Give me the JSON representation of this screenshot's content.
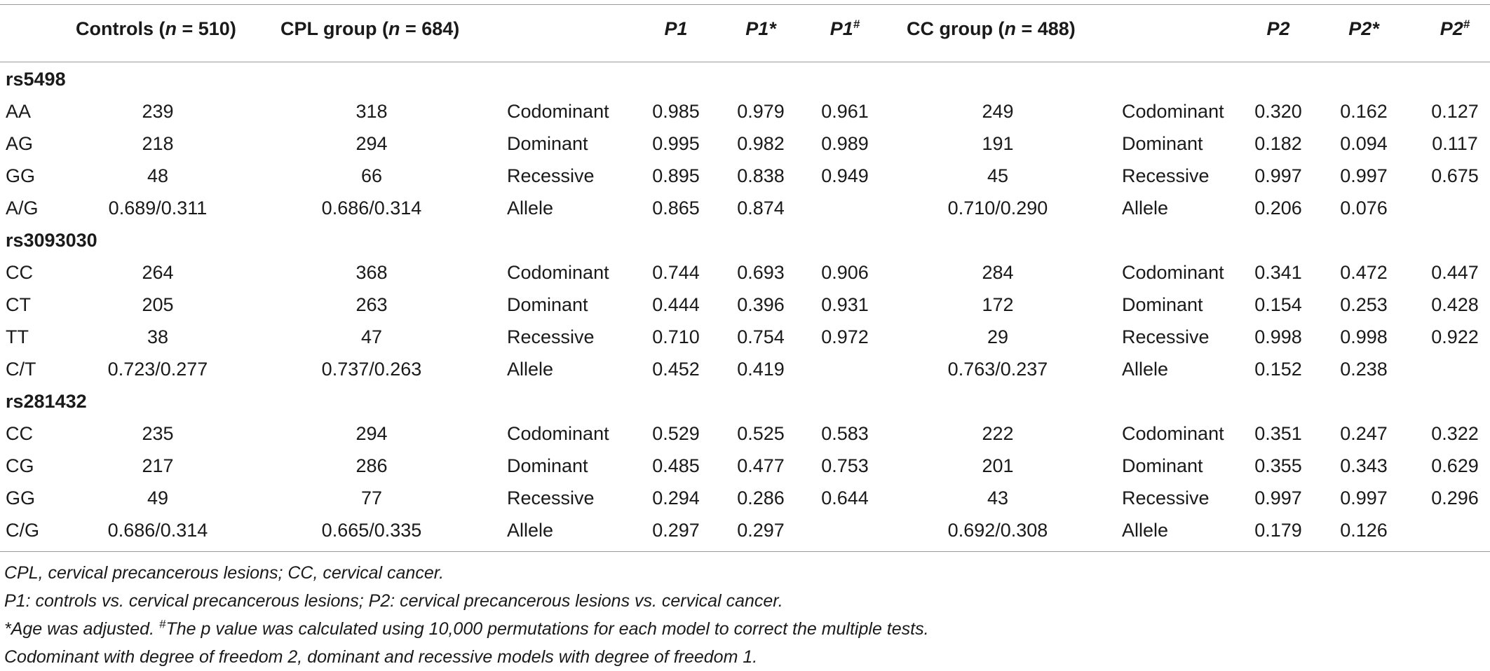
{
  "table": {
    "headers": {
      "controls": "Controls (n = 510)",
      "cpl": "CPL group (n = 684)",
      "p1": "P1",
      "p1_star": "P1*",
      "p1_hash": "P1#",
      "cc": "CC group (n = 488)",
      "p2": "P2",
      "p2_star": "P2*",
      "p2_hash": "P2#"
    },
    "sections": [
      {
        "snp": "rs5498",
        "rows": [
          {
            "genotype": "AA",
            "controls": "239",
            "cpl": "318",
            "model1": "Codominant",
            "p1": "0.985",
            "p1s": "0.979",
            "p1h": "0.961",
            "cc": "249",
            "model2": "Codominant",
            "p2": "0.320",
            "p2s": "0.162",
            "p2h": "0.127"
          },
          {
            "genotype": "AG",
            "controls": "218",
            "cpl": "294",
            "model1": "Dominant",
            "p1": "0.995",
            "p1s": "0.982",
            "p1h": "0.989",
            "cc": "191",
            "model2": "Dominant",
            "p2": "0.182",
            "p2s": "0.094",
            "p2h": "0.117"
          },
          {
            "genotype": "GG",
            "controls": "48",
            "cpl": "66",
            "model1": "Recessive",
            "p1": "0.895",
            "p1s": "0.838",
            "p1h": "0.949",
            "cc": "45",
            "model2": "Recessive",
            "p2": "0.997",
            "p2s": "0.997",
            "p2h": "0.675"
          },
          {
            "genotype": "A/G",
            "controls": "0.689/0.311",
            "cpl": "0.686/0.314",
            "model1": "Allele",
            "p1": "0.865",
            "p1s": "0.874",
            "p1h": "",
            "cc": "0.710/0.290",
            "model2": "Allele",
            "p2": "0.206",
            "p2s": "0.076",
            "p2h": ""
          }
        ]
      },
      {
        "snp": "rs3093030",
        "rows": [
          {
            "genotype": "CC",
            "controls": "264",
            "cpl": "368",
            "model1": "Codominant",
            "p1": "0.744",
            "p1s": "0.693",
            "p1h": "0.906",
            "cc": "284",
            "model2": "Codominant",
            "p2": "0.341",
            "p2s": "0.472",
            "p2h": "0.447"
          },
          {
            "genotype": "CT",
            "controls": "205",
            "cpl": "263",
            "model1": "Dominant",
            "p1": "0.444",
            "p1s": "0.396",
            "p1h": "0.931",
            "cc": "172",
            "model2": "Dominant",
            "p2": "0.154",
            "p2s": "0.253",
            "p2h": "0.428"
          },
          {
            "genotype": "TT",
            "controls": "38",
            "cpl": "47",
            "model1": "Recessive",
            "p1": "0.710",
            "p1s": "0.754",
            "p1h": "0.972",
            "cc": "29",
            "model2": "Recessive",
            "p2": "0.998",
            "p2s": "0.998",
            "p2h": "0.922"
          },
          {
            "genotype": "C/T",
            "controls": "0.723/0.277",
            "cpl": "0.737/0.263",
            "model1": "Allele",
            "p1": "0.452",
            "p1s": "0.419",
            "p1h": "",
            "cc": "0.763/0.237",
            "model2": "Allele",
            "p2": "0.152",
            "p2s": "0.238",
            "p2h": ""
          }
        ]
      },
      {
        "snp": "rs281432",
        "rows": [
          {
            "genotype": "CC",
            "controls": "235",
            "cpl": "294",
            "model1": "Codominant",
            "p1": "0.529",
            "p1s": "0.525",
            "p1h": "0.583",
            "cc": "222",
            "model2": "Codominant",
            "p2": "0.351",
            "p2s": "0.247",
            "p2h": "0.322"
          },
          {
            "genotype": "CG",
            "controls": "217",
            "cpl": "286",
            "model1": "Dominant",
            "p1": "0.485",
            "p1s": "0.477",
            "p1h": "0.753",
            "cc": "201",
            "model2": "Dominant",
            "p2": "0.355",
            "p2s": "0.343",
            "p2h": "0.629"
          },
          {
            "genotype": "GG",
            "controls": "49",
            "cpl": "77",
            "model1": "Recessive",
            "p1": "0.294",
            "p1s": "0.286",
            "p1h": "0.644",
            "cc": "43",
            "model2": "Recessive",
            "p2": "0.997",
            "p2s": "0.997",
            "p2h": "0.296"
          },
          {
            "genotype": "C/G",
            "controls": "0.686/0.314",
            "cpl": "0.665/0.335",
            "model1": "Allele",
            "p1": "0.297",
            "p1s": "0.297",
            "p1h": "",
            "cc": "0.692/0.308",
            "model2": "Allele",
            "p2": "0.179",
            "p2s": "0.126",
            "p2h": ""
          }
        ]
      }
    ]
  },
  "footnotes": [
    "CPL, cervical precancerous lesions; CC, cervical cancer.",
    "P1: controls vs. cervical precancerous lesions; P2: cervical precancerous lesions vs. cervical cancer.",
    "*Age was adjusted. #The p value was calculated using 10,000 permutations for each model to correct the multiple tests.",
    "Codominant with degree of freedom 2, dominant and recessive models with degree of freedom 1."
  ]
}
